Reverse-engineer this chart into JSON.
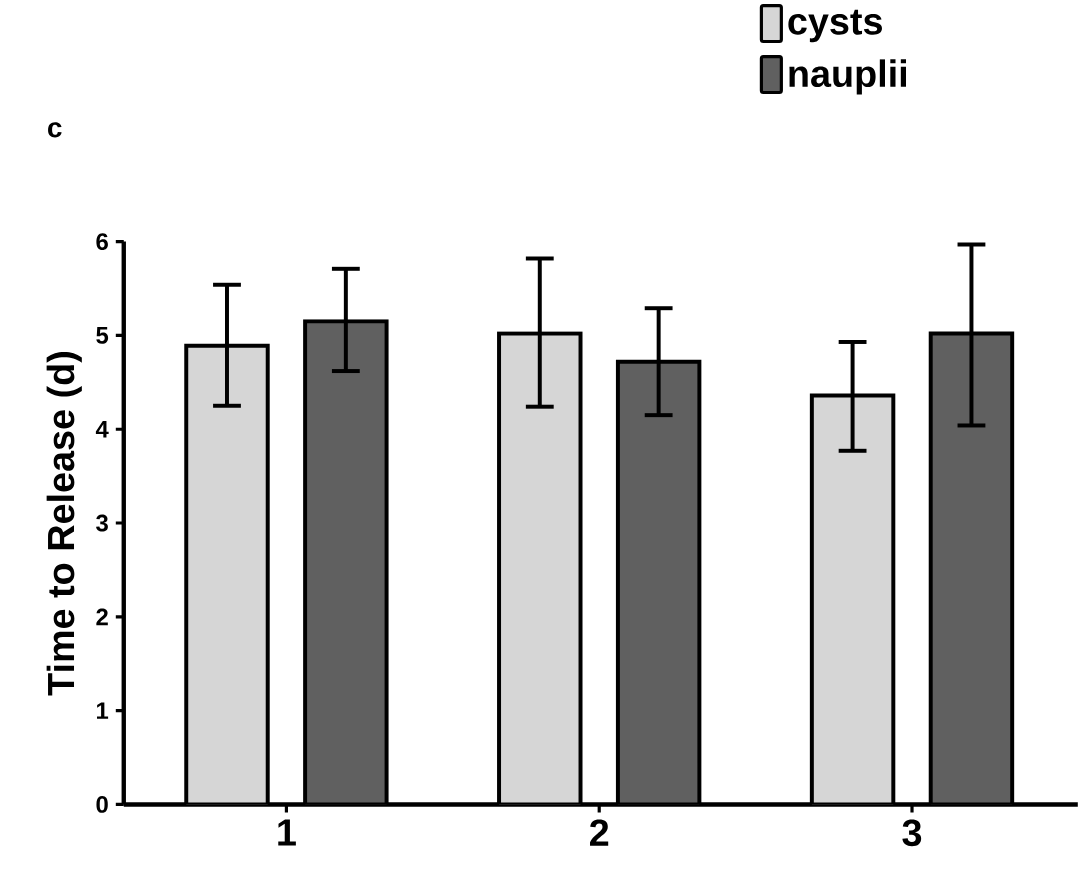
{
  "chart_data": {
    "type": "bar",
    "annotations": [
      "c"
    ],
    "ylabel": "Time to Release (d)",
    "categories": [
      "1",
      "2",
      "3"
    ],
    "series": [
      {
        "name": "cysts",
        "color": "#d6d6d6",
        "values": [
          4.89,
          5.02,
          4.36
        ],
        "errors": [
          [
            4.25,
            5.54
          ],
          [
            4.24,
            5.82
          ],
          [
            3.77,
            4.93
          ]
        ]
      },
      {
        "name": "nauplii",
        "color": "#606060",
        "values": [
          5.15,
          4.72,
          5.02
        ],
        "errors": [
          [
            4.62,
            5.71
          ],
          [
            4.15,
            5.29
          ],
          [
            4.04,
            5.97
          ]
        ]
      }
    ],
    "ylim": [
      0,
      6
    ],
    "yticks": [
      0,
      1,
      2,
      3,
      4,
      5,
      6
    ],
    "grid": false,
    "legend": "top right"
  }
}
